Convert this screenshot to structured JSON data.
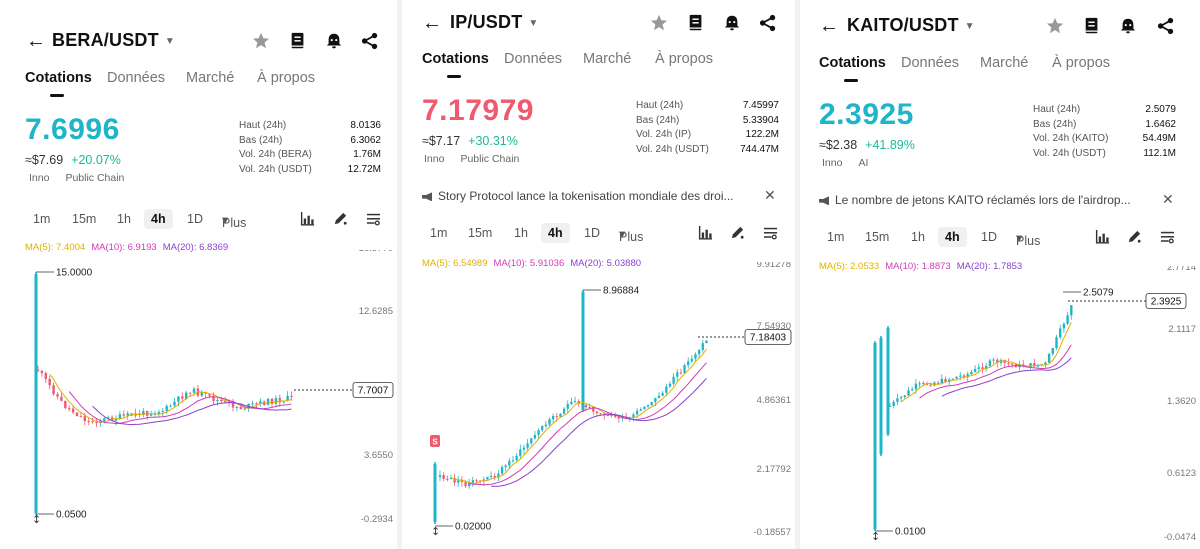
{
  "colors": {
    "up": "#1fb5c9",
    "down": "#f05a6e",
    "change": "#1bb89a",
    "ma5": "#e0b000",
    "ma10": "#d43ab6",
    "ma20": "#8a3fd1"
  },
  "tabs": [
    "Cotations",
    "Données",
    "Marché",
    "À propos"
  ],
  "timeframes": [
    "1m",
    "15m",
    "1h",
    "4h",
    "1D",
    "Plus"
  ],
  "stat_labels": {
    "high": "Haut (24h)",
    "low": "Bas (24h)"
  },
  "panels": [
    {
      "pair": "BERA/USDT",
      "price": "7.6996",
      "price_color": "#1fb5c9",
      "fiat": "≈$7.69",
      "change": "+20.07%",
      "tags": [
        "Inno",
        "Public Chain"
      ],
      "stats": [
        {
          "label": "Haut (24h)",
          "value": "8.0136"
        },
        {
          "label": "Bas (24h)",
          "value": "6.3062"
        },
        {
          "label": "Vol. 24h (BERA)",
          "value": "1.76M"
        },
        {
          "label": "Vol. 24h (USDT)",
          "value": "12.72M"
        }
      ],
      "news": "",
      "ma": {
        "ma5": "MA(5): 7.4004",
        "ma10": "MA(10): 6.9193",
        "ma20": "MA(20): 6.8369"
      },
      "axis_labels": [
        "16.5770",
        "12.6285",
        "",
        "3.6550",
        "-0.2934"
      ],
      "high_marker": "15.0000",
      "low_marker": "0.0500",
      "last_price": "7.7007"
    },
    {
      "pair": "IP/USDT",
      "price": "7.17979",
      "price_color": "#f05a6e",
      "fiat": "≈$7.17",
      "change": "+30.31%",
      "tags": [
        "Inno",
        "Public Chain"
      ],
      "stats": [
        {
          "label": "Haut (24h)",
          "value": "7.45997"
        },
        {
          "label": "Bas (24h)",
          "value": "5.33904"
        },
        {
          "label": "Vol. 24h (IP)",
          "value": "122.2M"
        },
        {
          "label": "Vol. 24h (USDT)",
          "value": "744.47M"
        }
      ],
      "news": "Story Protocol lance la tokenisation mondiale des droi...",
      "ma": {
        "ma5": "MA(5): 6.54989",
        "ma10": "MA(10): 5.91036",
        "ma20": "MA(20): 5.03880"
      },
      "axis_labels": [
        "9.91278",
        "7.54930",
        "4.86361",
        "2.17792",
        "-0.18557"
      ],
      "high_marker": "8.96884",
      "low_marker": "0.02000",
      "last_price": "7.18403",
      "sell_marker": "S"
    },
    {
      "pair": "KAITO/USDT",
      "price": "2.3925",
      "price_color": "#1fb5c9",
      "fiat": "≈$2.38",
      "change": "+41.89%",
      "tags": [
        "Inno",
        "AI"
      ],
      "stats": [
        {
          "label": "Haut (24h)",
          "value": "2.5079"
        },
        {
          "label": "Bas (24h)",
          "value": "1.6462"
        },
        {
          "label": "Vol. 24h (KAITO)",
          "value": "54.49M"
        },
        {
          "label": "Vol. 24h (USDT)",
          "value": "112.1M"
        }
      ],
      "news": "Le nombre de jetons KAITO réclamés lors de l'airdrop...",
      "ma": {
        "ma5": "MA(5): 2.0533",
        "ma10": "MA(10): 1.8873",
        "ma20": "MA(20): 1.7853"
      },
      "axis_labels": [
        "2.7714",
        "2.1117",
        "1.3620",
        "0.6123",
        "-0.0474"
      ],
      "high_marker": "2.5079",
      "low_marker": "0.0100",
      "last_price": "2.3925"
    }
  ]
}
